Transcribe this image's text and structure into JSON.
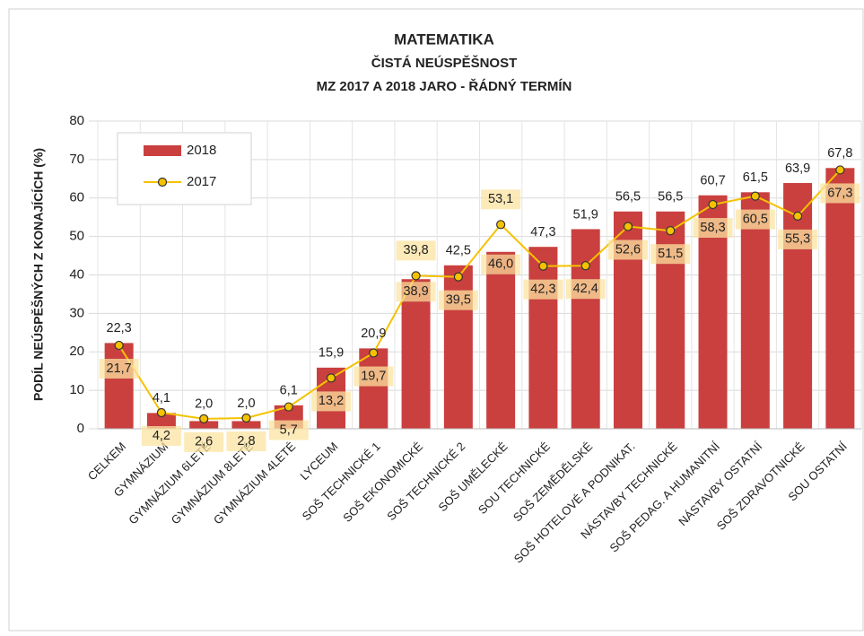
{
  "chart_data": {
    "type": "bar",
    "title": "MATEMATIKA",
    "subtitle": [
      "ČISTÁ NEÚSPĚŠNOST",
      "MZ 2017 A 2018 JARO - ŘÁDNÝ TERMÍN"
    ],
    "y_label": "PODÍL NEÚSPĚŠNÝCH Z KONAJÍCÍCH (%)",
    "categories": [
      "CELKEM",
      "GYMNÁZIUM",
      "GYMNÁZIUM 6LETÉ",
      "GYMNÁZIUM 8LETÉ",
      "GYMNÁZIUM 4LETÉ",
      "LYCEUM",
      "SOŠ TECHNICKÉ 1",
      "SOŠ EKONOMICKÉ",
      "SOŠ TECHNICKÉ 2",
      "SOŠ UMĚLECKÉ",
      "SOU TECHNICKÉ",
      "SOŠ ZEMĚDĚLSKÉ",
      "SOŠ HOTELOVÉ A PODNIKAT.",
      "NÁSTAVBY TECHNICKÉ",
      "SOŠ PEDAG. A HUMANITNÍ",
      "NÁSTAVBY OSTATNÍ",
      "SOŠ ZDRAVOTNICKÉ",
      "SOU OSTATNÍ"
    ],
    "series": [
      {
        "name": "2018",
        "type": "bar",
        "color": "#c9403f",
        "values": [
          22.3,
          4.1,
          2.0,
          2.0,
          6.1,
          15.9,
          20.9,
          38.9,
          42.5,
          46.0,
          47.3,
          51.9,
          56.5,
          56.5,
          60.7,
          61.5,
          63.9,
          67.8
        ],
        "value_labels": [
          "22,3",
          "4,1",
          "2,0",
          "2,0",
          "6,1",
          "15,9",
          "20,9",
          "38,9",
          "42,5",
          "46,0",
          "47,3",
          "51,9",
          "56,5",
          "56,5",
          "60,7",
          "61,5",
          "63,9",
          "67,8"
        ]
      },
      {
        "name": "2017",
        "type": "line",
        "color": "#f5c200",
        "values": [
          21.7,
          4.2,
          2.6,
          2.8,
          5.7,
          13.2,
          19.7,
          39.8,
          39.5,
          53.1,
          42.3,
          42.4,
          52.6,
          51.5,
          58.3,
          60.5,
          55.3,
          67.3
        ],
        "value_labels": [
          "21,7",
          "4,2",
          "2,6",
          "2,8",
          "5,7",
          "13,2",
          "19,7",
          "39,8",
          "39,5",
          "53,1",
          "42,3",
          "42,4",
          "52,6",
          "51,5",
          "58,3",
          "60,5",
          "55,3",
          "67,3"
        ]
      }
    ],
    "ylim": [
      0,
      80
    ],
    "yticks": [
      0,
      10,
      20,
      30,
      40,
      50,
      60,
      70,
      80
    ],
    "grid": true,
    "legend": "upper left"
  }
}
